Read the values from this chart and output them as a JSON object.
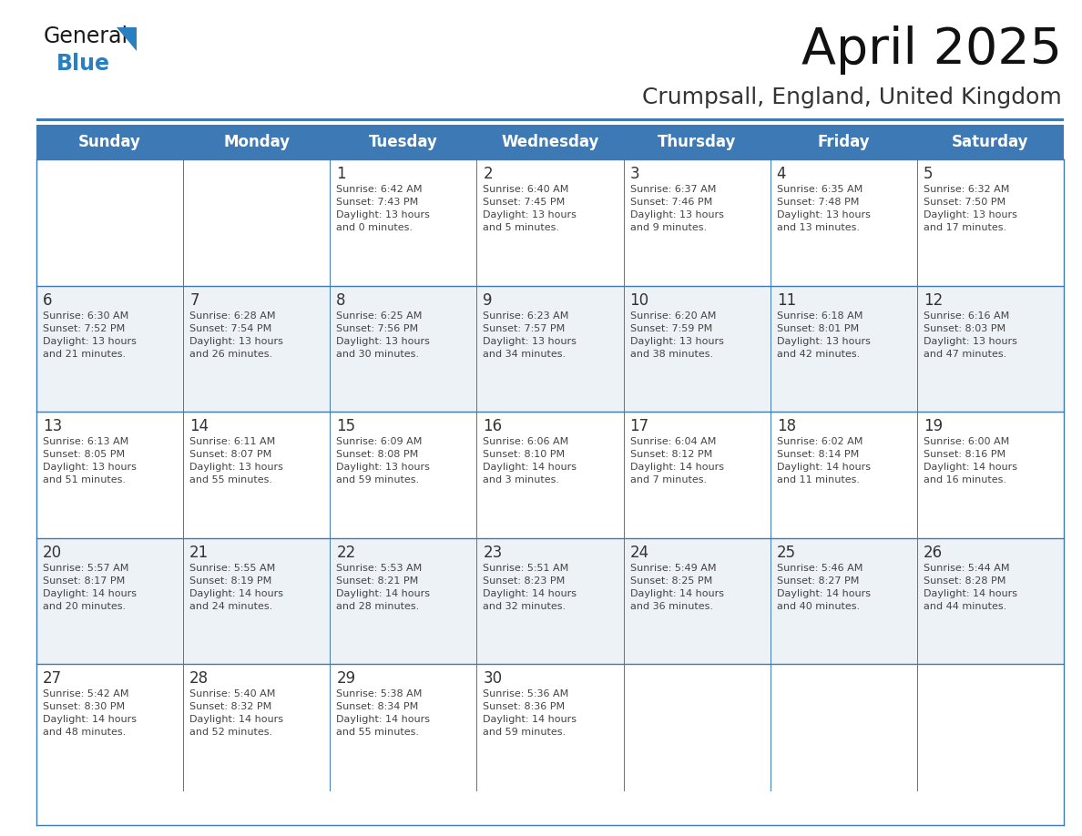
{
  "title": "April 2025",
  "subtitle": "Crumpsall, England, United Kingdom",
  "days_of_week": [
    "Sunday",
    "Monday",
    "Tuesday",
    "Wednesday",
    "Thursday",
    "Friday",
    "Saturday"
  ],
  "header_bg": "#3d7ab5",
  "header_text": "#ffffff",
  "row_bg": [
    "#ffffff",
    "#edf2f7"
  ],
  "cell_border": "#3d7ab5",
  "day_num_color": "#333333",
  "cell_text_color": "#444444",
  "title_color": "#111111",
  "subtitle_color": "#333333",
  "logo_dark": "#1a1a1a",
  "logo_blue": "#2a7fc1",
  "fig_width": 11.88,
  "fig_height": 9.18,
  "dpi": 100,
  "weeks": [
    [
      {
        "day": null,
        "info": null
      },
      {
        "day": null,
        "info": null
      },
      {
        "day": "1",
        "info": "Sunrise: 6:42 AM\nSunset: 7:43 PM\nDaylight: 13 hours\nand 0 minutes."
      },
      {
        "day": "2",
        "info": "Sunrise: 6:40 AM\nSunset: 7:45 PM\nDaylight: 13 hours\nand 5 minutes."
      },
      {
        "day": "3",
        "info": "Sunrise: 6:37 AM\nSunset: 7:46 PM\nDaylight: 13 hours\nand 9 minutes."
      },
      {
        "day": "4",
        "info": "Sunrise: 6:35 AM\nSunset: 7:48 PM\nDaylight: 13 hours\nand 13 minutes."
      },
      {
        "day": "5",
        "info": "Sunrise: 6:32 AM\nSunset: 7:50 PM\nDaylight: 13 hours\nand 17 minutes."
      }
    ],
    [
      {
        "day": "6",
        "info": "Sunrise: 6:30 AM\nSunset: 7:52 PM\nDaylight: 13 hours\nand 21 minutes."
      },
      {
        "day": "7",
        "info": "Sunrise: 6:28 AM\nSunset: 7:54 PM\nDaylight: 13 hours\nand 26 minutes."
      },
      {
        "day": "8",
        "info": "Sunrise: 6:25 AM\nSunset: 7:56 PM\nDaylight: 13 hours\nand 30 minutes."
      },
      {
        "day": "9",
        "info": "Sunrise: 6:23 AM\nSunset: 7:57 PM\nDaylight: 13 hours\nand 34 minutes."
      },
      {
        "day": "10",
        "info": "Sunrise: 6:20 AM\nSunset: 7:59 PM\nDaylight: 13 hours\nand 38 minutes."
      },
      {
        "day": "11",
        "info": "Sunrise: 6:18 AM\nSunset: 8:01 PM\nDaylight: 13 hours\nand 42 minutes."
      },
      {
        "day": "12",
        "info": "Sunrise: 6:16 AM\nSunset: 8:03 PM\nDaylight: 13 hours\nand 47 minutes."
      }
    ],
    [
      {
        "day": "13",
        "info": "Sunrise: 6:13 AM\nSunset: 8:05 PM\nDaylight: 13 hours\nand 51 minutes."
      },
      {
        "day": "14",
        "info": "Sunrise: 6:11 AM\nSunset: 8:07 PM\nDaylight: 13 hours\nand 55 minutes."
      },
      {
        "day": "15",
        "info": "Sunrise: 6:09 AM\nSunset: 8:08 PM\nDaylight: 13 hours\nand 59 minutes."
      },
      {
        "day": "16",
        "info": "Sunrise: 6:06 AM\nSunset: 8:10 PM\nDaylight: 14 hours\nand 3 minutes."
      },
      {
        "day": "17",
        "info": "Sunrise: 6:04 AM\nSunset: 8:12 PM\nDaylight: 14 hours\nand 7 minutes."
      },
      {
        "day": "18",
        "info": "Sunrise: 6:02 AM\nSunset: 8:14 PM\nDaylight: 14 hours\nand 11 minutes."
      },
      {
        "day": "19",
        "info": "Sunrise: 6:00 AM\nSunset: 8:16 PM\nDaylight: 14 hours\nand 16 minutes."
      }
    ],
    [
      {
        "day": "20",
        "info": "Sunrise: 5:57 AM\nSunset: 8:17 PM\nDaylight: 14 hours\nand 20 minutes."
      },
      {
        "day": "21",
        "info": "Sunrise: 5:55 AM\nSunset: 8:19 PM\nDaylight: 14 hours\nand 24 minutes."
      },
      {
        "day": "22",
        "info": "Sunrise: 5:53 AM\nSunset: 8:21 PM\nDaylight: 14 hours\nand 28 minutes."
      },
      {
        "day": "23",
        "info": "Sunrise: 5:51 AM\nSunset: 8:23 PM\nDaylight: 14 hours\nand 32 minutes."
      },
      {
        "day": "24",
        "info": "Sunrise: 5:49 AM\nSunset: 8:25 PM\nDaylight: 14 hours\nand 36 minutes."
      },
      {
        "day": "25",
        "info": "Sunrise: 5:46 AM\nSunset: 8:27 PM\nDaylight: 14 hours\nand 40 minutes."
      },
      {
        "day": "26",
        "info": "Sunrise: 5:44 AM\nSunset: 8:28 PM\nDaylight: 14 hours\nand 44 minutes."
      }
    ],
    [
      {
        "day": "27",
        "info": "Sunrise: 5:42 AM\nSunset: 8:30 PM\nDaylight: 14 hours\nand 48 minutes."
      },
      {
        "day": "28",
        "info": "Sunrise: 5:40 AM\nSunset: 8:32 PM\nDaylight: 14 hours\nand 52 minutes."
      },
      {
        "day": "29",
        "info": "Sunrise: 5:38 AM\nSunset: 8:34 PM\nDaylight: 14 hours\nand 55 minutes."
      },
      {
        "day": "30",
        "info": "Sunrise: 5:36 AM\nSunset: 8:36 PM\nDaylight: 14 hours\nand 59 minutes."
      },
      {
        "day": null,
        "info": null
      },
      {
        "day": null,
        "info": null
      },
      {
        "day": null,
        "info": null
      }
    ]
  ]
}
